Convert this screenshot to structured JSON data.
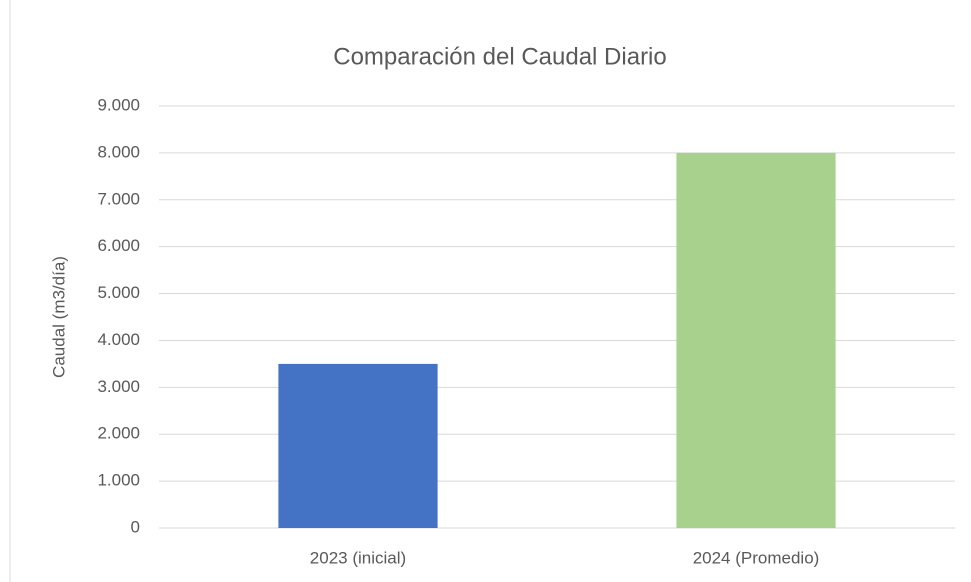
{
  "chart_data": {
    "type": "bar",
    "title": "Comparación del Caudal Diario",
    "y_label": "Caudal (m3/día)",
    "categories": [
      "2023 (inicial)",
      "2024 (Promedio)"
    ],
    "values": [
      3500,
      8000
    ],
    "colors": [
      "#4472c4",
      "#a9d18e"
    ],
    "ylim": [
      0,
      9000
    ],
    "yticks": [
      0,
      {
        "value": 1000,
        "label": "1.000"
      },
      {
        "value": 2000,
        "label": "2.000"
      },
      {
        "value": 3000,
        "label": "3.000"
      },
      {
        "value": 4000,
        "label": "4.000"
      },
      {
        "value": 5000,
        "label": "5.000"
      },
      {
        "value": 6000,
        "label": "6.000"
      },
      {
        "value": 7000,
        "label": "7.000"
      },
      {
        "value": 8000,
        "label": "8.000"
      },
      {
        "value": 9000,
        "label": "9.000"
      }
    ],
    "grid": true
  }
}
